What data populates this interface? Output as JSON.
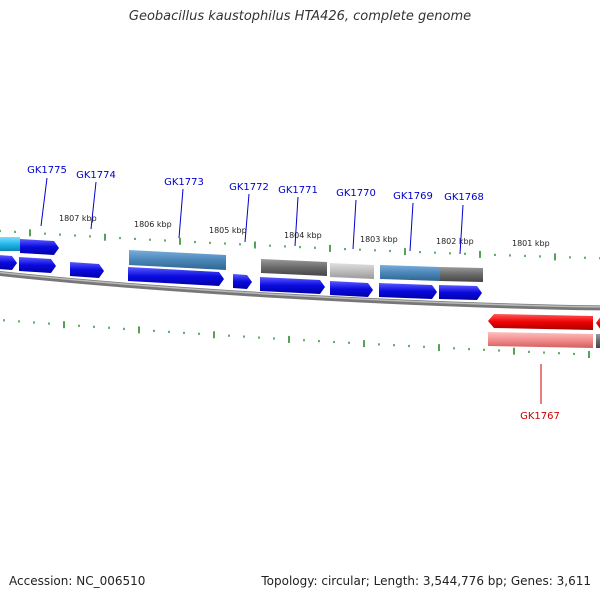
{
  "title": "Geobacillus kaustophilus HTA426, complete genome",
  "footer": {
    "accession": "Accession: NC_006510",
    "summary": "Topology: circular; Length: 3,544,776 bp; Genes: 3,611"
  },
  "scale_labels": [
    "1807 kbp",
    "1806 kbp",
    "1805 kbp",
    "1804 kbp",
    "1803 kbp",
    "1802 kbp",
    "1801 kbp"
  ],
  "gene_labels": [
    {
      "name": "GK1775",
      "strand": "forward"
    },
    {
      "name": "GK1774",
      "strand": "forward"
    },
    {
      "name": "GK1773",
      "strand": "forward"
    },
    {
      "name": "GK1772",
      "strand": "forward"
    },
    {
      "name": "GK1771",
      "strand": "forward"
    },
    {
      "name": "GK1770",
      "strand": "forward"
    },
    {
      "name": "GK1769",
      "strand": "forward"
    },
    {
      "name": "GK1768",
      "strand": "forward"
    },
    {
      "name": "GK1767",
      "strand": "reverse"
    }
  ],
  "colors": {
    "forward_label": "#0000cc",
    "reverse_label": "#cc0000",
    "tick": "#2a8a2a",
    "backbone": "#888888",
    "cds_blue": "#0a0adf",
    "cds_red": "#ee0000",
    "gene_steel": "#4a86b8",
    "gene_gray": "#6a6a6a",
    "gene_light": "#bdbdbd",
    "gene_cyan": "#22b8e8",
    "gene_pink": "#f28c8c"
  }
}
